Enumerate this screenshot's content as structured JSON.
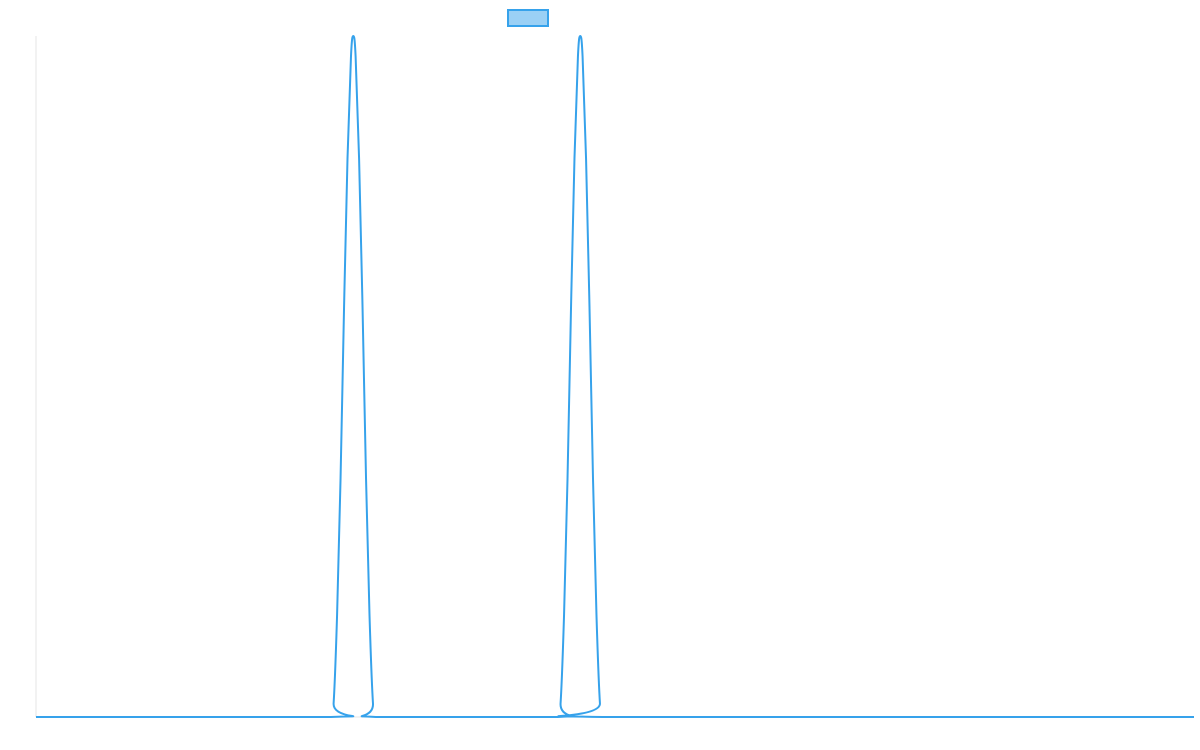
{
  "colors": {
    "series_stroke": "#36a2eb",
    "series_fill": "#9ad0f5",
    "axis": "#e5e5e5",
    "background": "#ffffff"
  },
  "chart_data": {
    "type": "line",
    "title": "",
    "xlabel": "",
    "ylabel": "",
    "grid": false,
    "show_tick_labels": false,
    "legend": {
      "position": "top-center",
      "entries": [
        {
          "label": "",
          "color_fill": "#9ad0f5",
          "color_stroke": "#36a2eb"
        }
      ]
    },
    "xlim": [
      0,
      1000
    ],
    "ylim": [
      0,
      1
    ],
    "series": [
      {
        "name": "",
        "shape": "peaks on a flat zero baseline",
        "peaks": [
          {
            "x": 274,
            "y": 1,
            "start": 254.5,
            "end": 293.5
          },
          {
            "x": 470,
            "y": 1,
            "start": 450.5,
            "end": 489.5
          }
        ],
        "points": [
          [
            0,
            0
          ],
          [
            254.5,
            0
          ],
          [
            257,
            0.02
          ],
          [
            260,
            0.15
          ],
          [
            263,
            0.35
          ],
          [
            266,
            0.6
          ],
          [
            269,
            0.82
          ],
          [
            272,
            0.97
          ],
          [
            274,
            1
          ],
          [
            276,
            0.97
          ],
          [
            279,
            0.82
          ],
          [
            282,
            0.6
          ],
          [
            285,
            0.35
          ],
          [
            288,
            0.15
          ],
          [
            291,
            0.02
          ],
          [
            293.5,
            0
          ],
          [
            450.5,
            0
          ],
          [
            453,
            0.02
          ],
          [
            456,
            0.15
          ],
          [
            459,
            0.35
          ],
          [
            462,
            0.6
          ],
          [
            465,
            0.82
          ],
          [
            468,
            0.97
          ],
          [
            470,
            1
          ],
          [
            472,
            0.97
          ],
          [
            475,
            0.82
          ],
          [
            478,
            0.6
          ],
          [
            481,
            0.35
          ],
          [
            484,
            0.15
          ],
          [
            487,
            0.02
          ],
          [
            489.5,
            0
          ],
          [
            1000,
            0
          ]
        ]
      }
    ]
  }
}
